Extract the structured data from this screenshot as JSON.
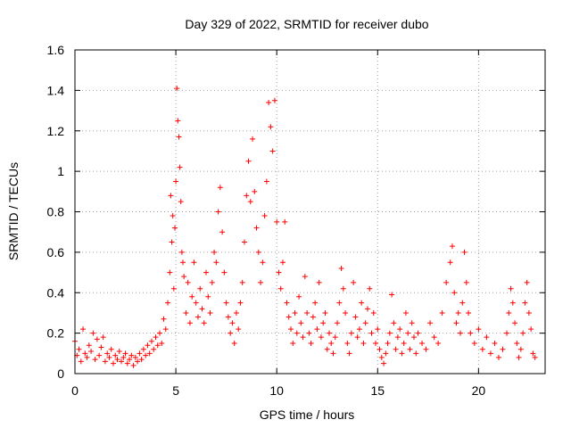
{
  "chart_data": {
    "type": "scatter",
    "title": "Day 329 of 2022, SRMTID for receiver dubo",
    "xlabel": "GPS time / hours",
    "ylabel": "SRMTID / TECUs",
    "xlim": [
      0,
      23.3
    ],
    "ylim": [
      0,
      1.6
    ],
    "xticks": [
      0,
      5,
      10,
      15,
      20
    ],
    "xtick_labels": [
      "0",
      "5",
      "10",
      "15",
      "20"
    ],
    "yticks": [
      0,
      0.2,
      0.4,
      0.6,
      0.8,
      1.0,
      1.2,
      1.4,
      1.6
    ],
    "ytick_labels": [
      "0",
      "0.2",
      "0.4",
      "0.6",
      "0.8",
      "1",
      "1.2",
      "1.4",
      "1.6"
    ],
    "grid": true,
    "marker": "+",
    "color": "#ff0000",
    "series": [
      {
        "name": "SRMTID",
        "points": [
          [
            0.0,
            0.16
          ],
          [
            0.1,
            0.09
          ],
          [
            0.2,
            0.12
          ],
          [
            0.3,
            0.06
          ],
          [
            0.4,
            0.22
          ],
          [
            0.5,
            0.1
          ],
          [
            0.6,
            0.08
          ],
          [
            0.7,
            0.14
          ],
          [
            0.8,
            0.11
          ],
          [
            0.9,
            0.2
          ],
          [
            1.0,
            0.07
          ],
          [
            1.1,
            0.17
          ],
          [
            1.2,
            0.09
          ],
          [
            1.3,
            0.13
          ],
          [
            1.4,
            0.18
          ],
          [
            1.5,
            0.06
          ],
          [
            1.6,
            0.1
          ],
          [
            1.7,
            0.08
          ],
          [
            1.8,
            0.12
          ],
          [
            1.9,
            0.05
          ],
          [
            2.0,
            0.09
          ],
          [
            2.1,
            0.07
          ],
          [
            2.2,
            0.11
          ],
          [
            2.3,
            0.06
          ],
          [
            2.4,
            0.08
          ],
          [
            2.5,
            0.1
          ],
          [
            2.6,
            0.05
          ],
          [
            2.7,
            0.07
          ],
          [
            2.8,
            0.09
          ],
          [
            2.9,
            0.04
          ],
          [
            3.0,
            0.08
          ],
          [
            3.1,
            0.06
          ],
          [
            3.2,
            0.1
          ],
          [
            3.3,
            0.07
          ],
          [
            3.4,
            0.12
          ],
          [
            3.5,
            0.09
          ],
          [
            3.6,
            0.14
          ],
          [
            3.7,
            0.1
          ],
          [
            3.8,
            0.16
          ],
          [
            3.9,
            0.12
          ],
          [
            4.0,
            0.18
          ],
          [
            4.1,
            0.14
          ],
          [
            4.2,
            0.2
          ],
          [
            4.3,
            0.15
          ],
          [
            4.4,
            0.27
          ],
          [
            4.5,
            0.22
          ],
          [
            4.6,
            0.35
          ],
          [
            4.7,
            0.5
          ],
          [
            4.75,
            0.88
          ],
          [
            4.8,
            0.65
          ],
          [
            4.85,
            0.78
          ],
          [
            4.9,
            0.42
          ],
          [
            4.95,
            0.72
          ],
          [
            5.0,
            0.95
          ],
          [
            5.05,
            1.41
          ],
          [
            5.1,
            1.25
          ],
          [
            5.15,
            1.17
          ],
          [
            5.2,
            1.02
          ],
          [
            5.25,
            0.85
          ],
          [
            5.3,
            0.6
          ],
          [
            5.35,
            0.55
          ],
          [
            5.4,
            0.48
          ],
          [
            5.5,
            0.3
          ],
          [
            5.6,
            0.45
          ],
          [
            5.7,
            0.25
          ],
          [
            5.8,
            0.38
          ],
          [
            5.9,
            0.55
          ],
          [
            6.0,
            0.35
          ],
          [
            6.1,
            0.28
          ],
          [
            6.2,
            0.42
          ],
          [
            6.3,
            0.32
          ],
          [
            6.4,
            0.25
          ],
          [
            6.5,
            0.5
          ],
          [
            6.6,
            0.38
          ],
          [
            6.7,
            0.3
          ],
          [
            6.8,
            0.45
          ],
          [
            6.9,
            0.6
          ],
          [
            7.0,
            0.55
          ],
          [
            7.1,
            0.8
          ],
          [
            7.2,
            0.92
          ],
          [
            7.3,
            0.7
          ],
          [
            7.4,
            0.5
          ],
          [
            7.5,
            0.35
          ],
          [
            7.6,
            0.28
          ],
          [
            7.7,
            0.2
          ],
          [
            7.8,
            0.25
          ],
          [
            7.9,
            0.15
          ],
          [
            8.0,
            0.3
          ],
          [
            8.1,
            0.22
          ],
          [
            8.2,
            0.35
          ],
          [
            8.3,
            0.45
          ],
          [
            8.4,
            0.65
          ],
          [
            8.5,
            0.88
          ],
          [
            8.6,
            1.05
          ],
          [
            8.7,
            0.85
          ],
          [
            8.8,
            1.16
          ],
          [
            8.9,
            0.9
          ],
          [
            9.0,
            0.72
          ],
          [
            9.1,
            0.6
          ],
          [
            9.2,
            0.45
          ],
          [
            9.3,
            0.55
          ],
          [
            9.4,
            0.78
          ],
          [
            9.5,
            0.95
          ],
          [
            9.6,
            1.34
          ],
          [
            9.7,
            1.22
          ],
          [
            9.8,
            1.1
          ],
          [
            9.9,
            1.35
          ],
          [
            10.0,
            0.75
          ],
          [
            10.1,
            0.5
          ],
          [
            10.2,
            0.42
          ],
          [
            10.3,
            0.55
          ],
          [
            10.4,
            0.75
          ],
          [
            10.5,
            0.35
          ],
          [
            10.6,
            0.28
          ],
          [
            10.7,
            0.22
          ],
          [
            10.8,
            0.15
          ],
          [
            10.9,
            0.3
          ],
          [
            11.0,
            0.2
          ],
          [
            11.1,
            0.38
          ],
          [
            11.2,
            0.25
          ],
          [
            11.3,
            0.18
          ],
          [
            11.4,
            0.48
          ],
          [
            11.5,
            0.3
          ],
          [
            11.6,
            0.2
          ],
          [
            11.7,
            0.15
          ],
          [
            11.8,
            0.28
          ],
          [
            11.9,
            0.35
          ],
          [
            12.0,
            0.22
          ],
          [
            12.1,
            0.45
          ],
          [
            12.2,
            0.18
          ],
          [
            12.3,
            0.25
          ],
          [
            12.4,
            0.3
          ],
          [
            12.5,
            0.12
          ],
          [
            12.6,
            0.2
          ],
          [
            12.7,
            0.15
          ],
          [
            12.8,
            0.1
          ],
          [
            12.9,
            0.18
          ],
          [
            13.0,
            0.25
          ],
          [
            13.1,
            0.35
          ],
          [
            13.2,
            0.52
          ],
          [
            13.3,
            0.42
          ],
          [
            13.4,
            0.3
          ],
          [
            13.5,
            0.15
          ],
          [
            13.6,
            0.1
          ],
          [
            13.7,
            0.2
          ],
          [
            13.8,
            0.45
          ],
          [
            13.9,
            0.28
          ],
          [
            14.0,
            0.18
          ],
          [
            14.1,
            0.22
          ],
          [
            14.2,
            0.35
          ],
          [
            14.3,
            0.15
          ],
          [
            14.4,
            0.25
          ],
          [
            14.5,
            0.32
          ],
          [
            14.6,
            0.42
          ],
          [
            14.7,
            0.2
          ],
          [
            14.8,
            0.3
          ],
          [
            14.9,
            0.15
          ],
          [
            15.0,
            0.22
          ],
          [
            15.1,
            0.12
          ],
          [
            15.2,
            0.08
          ],
          [
            15.3,
            0.05
          ],
          [
            15.4,
            0.1
          ],
          [
            15.5,
            0.15
          ],
          [
            15.6,
            0.2
          ],
          [
            15.7,
            0.39
          ],
          [
            15.8,
            0.25
          ],
          [
            15.9,
            0.12
          ],
          [
            16.0,
            0.18
          ],
          [
            16.1,
            0.22
          ],
          [
            16.2,
            0.1
          ],
          [
            16.3,
            0.15
          ],
          [
            16.4,
            0.3
          ],
          [
            16.5,
            0.2
          ],
          [
            16.6,
            0.12
          ],
          [
            16.7,
            0.25
          ],
          [
            16.8,
            0.18
          ],
          [
            16.9,
            0.1
          ],
          [
            17.0,
            0.2
          ],
          [
            17.2,
            0.15
          ],
          [
            17.4,
            0.12
          ],
          [
            17.6,
            0.25
          ],
          [
            17.8,
            0.18
          ],
          [
            18.0,
            0.15
          ],
          [
            18.2,
            0.3
          ],
          [
            18.4,
            0.45
          ],
          [
            18.6,
            0.55
          ],
          [
            18.7,
            0.63
          ],
          [
            18.8,
            0.4
          ],
          [
            18.9,
            0.25
          ],
          [
            19.0,
            0.3
          ],
          [
            19.1,
            0.2
          ],
          [
            19.2,
            0.35
          ],
          [
            19.3,
            0.6
          ],
          [
            19.4,
            0.45
          ],
          [
            19.5,
            0.3
          ],
          [
            19.6,
            0.2
          ],
          [
            19.8,
            0.15
          ],
          [
            20.0,
            0.22
          ],
          [
            20.2,
            0.12
          ],
          [
            20.4,
            0.18
          ],
          [
            20.6,
            0.1
          ],
          [
            20.8,
            0.15
          ],
          [
            21.0,
            0.08
          ],
          [
            21.2,
            0.12
          ],
          [
            21.4,
            0.2
          ],
          [
            21.5,
            0.3
          ],
          [
            21.6,
            0.42
          ],
          [
            21.7,
            0.35
          ],
          [
            21.8,
            0.25
          ],
          [
            21.9,
            0.15
          ],
          [
            22.0,
            0.08
          ],
          [
            22.1,
            0.12
          ],
          [
            22.2,
            0.2
          ],
          [
            22.3,
            0.35
          ],
          [
            22.4,
            0.45
          ],
          [
            22.5,
            0.3
          ],
          [
            22.6,
            0.22
          ],
          [
            22.7,
            0.1
          ],
          [
            22.8,
            0.08
          ]
        ]
      }
    ]
  }
}
